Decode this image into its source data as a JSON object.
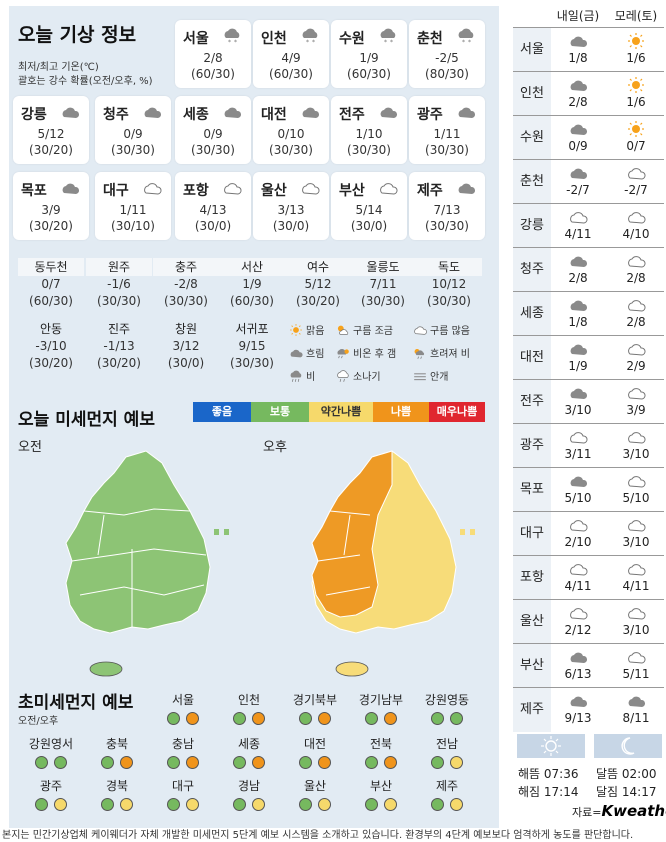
{
  "title": "오늘 기상 정보",
  "subtitle1": "최저/최고 기온(℃)",
  "subtitle2": "괄호는 강수 확률(오전/오후, %)",
  "cities": [
    {
      "name": "서울",
      "temp": "2/8",
      "prob": "(60/30)",
      "icon": "cloud-snow-icon"
    },
    {
      "name": "인천",
      "temp": "4/9",
      "prob": "(60/30)",
      "icon": "cloud-snow-icon"
    },
    {
      "name": "수원",
      "temp": "1/9",
      "prob": "(60/30)",
      "icon": "cloud-snow-icon"
    },
    {
      "name": "춘천",
      "temp": "-2/5",
      "prob": "(80/30)",
      "icon": "cloud-snow-icon"
    },
    {
      "name": "강릉",
      "temp": "5/12",
      "prob": "(30/20)",
      "icon": "cloudy-icon"
    },
    {
      "name": "청주",
      "temp": "0/9",
      "prob": "(30/30)",
      "icon": "cloudy-icon"
    },
    {
      "name": "세종",
      "temp": "0/9",
      "prob": "(30/30)",
      "icon": "cloudy-icon"
    },
    {
      "name": "대전",
      "temp": "0/10",
      "prob": "(30/30)",
      "icon": "cloudy-icon"
    },
    {
      "name": "전주",
      "temp": "1/10",
      "prob": "(30/30)",
      "icon": "cloudy-icon"
    },
    {
      "name": "광주",
      "temp": "1/11",
      "prob": "(30/30)",
      "icon": "cloudy-icon"
    },
    {
      "name": "목포",
      "temp": "3/9",
      "prob": "(30/20)",
      "icon": "cloudy-icon"
    },
    {
      "name": "대구",
      "temp": "1/11",
      "prob": "(30/10)",
      "icon": "mostly-cloudy-icon"
    },
    {
      "name": "포항",
      "temp": "4/13",
      "prob": "(30/0)",
      "icon": "mostly-cloudy-icon"
    },
    {
      "name": "울산",
      "temp": "3/13",
      "prob": "(30/0)",
      "icon": "mostly-cloudy-icon"
    },
    {
      "name": "부산",
      "temp": "5/14",
      "prob": "(30/0)",
      "icon": "mostly-cloudy-icon"
    },
    {
      "name": "제주",
      "temp": "7/13",
      "prob": "(30/30)",
      "icon": "cloudy-icon"
    }
  ],
  "small_cities": [
    {
      "name": "동두천",
      "temp": "0/7",
      "prob": "(60/30)"
    },
    {
      "name": "원주",
      "temp": "-1/6",
      "prob": "(30/30)"
    },
    {
      "name": "충주",
      "temp": "-2/8",
      "prob": "(30/30)"
    },
    {
      "name": "서산",
      "temp": "1/9",
      "prob": "(60/30)"
    },
    {
      "name": "여수",
      "temp": "5/12",
      "prob": "(30/20)"
    },
    {
      "name": "울릉도",
      "temp": "7/11",
      "prob": "(30/30)"
    },
    {
      "name": "독도",
      "temp": "10/12",
      "prob": "(30/30)"
    },
    {
      "name": "안동",
      "temp": "-3/10",
      "prob": "(30/20)"
    },
    {
      "name": "진주",
      "temp": "-1/13",
      "prob": "(30/20)"
    },
    {
      "name": "창원",
      "temp": "3/12",
      "prob": "(30/0)"
    },
    {
      "name": "서귀포",
      "temp": "9/15",
      "prob": "(30/30)"
    }
  ],
  "legend": [
    {
      "label": "맑음",
      "icon": "sun-icon"
    },
    {
      "label": "구름 조금",
      "icon": "partly-cloudy-icon"
    },
    {
      "label": "구름 많음",
      "icon": "mostly-cloudy-icon"
    },
    {
      "label": "흐림",
      "icon": "cloudy-icon"
    },
    {
      "label": "비온 후 갬",
      "icon": "rain-then-clear-icon"
    },
    {
      "label": "흐려져 비",
      "icon": "cloudy-then-rain-icon"
    },
    {
      "label": "비",
      "icon": "rain-icon"
    },
    {
      "label": "소나기",
      "icon": "shower-icon"
    },
    {
      "label": "안개",
      "icon": "fog-icon"
    }
  ],
  "dust_title": "오늘 미세먼지 예보",
  "dust_levels": [
    {
      "label": "좋음",
      "color": "#1a66c9"
    },
    {
      "label": "보통",
      "color": "#76b95f"
    },
    {
      "label": "약간나쁨",
      "color": "#f6d96b"
    },
    {
      "label": "나쁨",
      "color": "#f0941b"
    },
    {
      "label": "매우나쁨",
      "color": "#e0262f"
    }
  ],
  "am_label": "오전",
  "pm_label": "오후",
  "ufine_title": "초미세먼지 예보",
  "ufine_sub": "오전/오후",
  "ufine": [
    {
      "name": "서울",
      "am": "보통",
      "pm": "나쁨"
    },
    {
      "name": "인천",
      "am": "보통",
      "pm": "나쁨"
    },
    {
      "name": "경기북부",
      "am": "보통",
      "pm": "나쁨"
    },
    {
      "name": "경기남부",
      "am": "보통",
      "pm": "나쁨"
    },
    {
      "name": "강원영동",
      "am": "보통",
      "pm": "보통"
    },
    {
      "name": "강원영서",
      "am": "보통",
      "pm": "보통"
    },
    {
      "name": "충북",
      "am": "보통",
      "pm": "나쁨"
    },
    {
      "name": "충남",
      "am": "보통",
      "pm": "나쁨"
    },
    {
      "name": "세종",
      "am": "보통",
      "pm": "나쁨"
    },
    {
      "name": "대전",
      "am": "보통",
      "pm": "나쁨"
    },
    {
      "name": "전북",
      "am": "보통",
      "pm": "나쁨"
    },
    {
      "name": "전남",
      "am": "보통",
      "pm": "약간나쁨"
    },
    {
      "name": "광주",
      "am": "보통",
      "pm": "약간나쁨"
    },
    {
      "name": "경북",
      "am": "보통",
      "pm": "약간나쁨"
    },
    {
      "name": "대구",
      "am": "보통",
      "pm": "약간나쁨"
    },
    {
      "name": "경남",
      "am": "보통",
      "pm": "약간나쁨"
    },
    {
      "name": "울산",
      "am": "보통",
      "pm": "약간나쁨"
    },
    {
      "name": "부산",
      "am": "보통",
      "pm": "약간나쁨"
    },
    {
      "name": "제주",
      "am": "보통",
      "pm": "약간나쁨"
    }
  ],
  "forecast_headers": {
    "tomorrow": "내일(금)",
    "dayafter": "모레(토)"
  },
  "forecast": [
    {
      "city": "서울",
      "d1_icon": "cloudy-icon",
      "d1": "1/8",
      "d2_icon": "sun-icon",
      "d2": "1/6"
    },
    {
      "city": "인천",
      "d1_icon": "cloudy-icon",
      "d1": "2/8",
      "d2_icon": "sun-icon",
      "d2": "1/6"
    },
    {
      "city": "수원",
      "d1_icon": "cloudy-icon",
      "d1": "0/9",
      "d2_icon": "sun-icon",
      "d2": "0/7"
    },
    {
      "city": "춘천",
      "d1_icon": "cloudy-icon",
      "d1": "-2/7",
      "d2_icon": "mostly-cloudy-icon",
      "d2": "-2/7"
    },
    {
      "city": "강릉",
      "d1_icon": "mostly-cloudy-icon",
      "d1": "4/11",
      "d2_icon": "mostly-cloudy-icon",
      "d2": "4/10"
    },
    {
      "city": "청주",
      "d1_icon": "cloudy-icon",
      "d1": "2/8",
      "d2_icon": "mostly-cloudy-icon",
      "d2": "2/8"
    },
    {
      "city": "세종",
      "d1_icon": "cloudy-icon",
      "d1": "1/8",
      "d2_icon": "mostly-cloudy-icon",
      "d2": "2/8"
    },
    {
      "city": "대전",
      "d1_icon": "cloudy-icon",
      "d1": "1/9",
      "d2_icon": "mostly-cloudy-icon",
      "d2": "2/9"
    },
    {
      "city": "전주",
      "d1_icon": "cloudy-icon",
      "d1": "3/10",
      "d2_icon": "mostly-cloudy-icon",
      "d2": "3/9"
    },
    {
      "city": "광주",
      "d1_icon": "mostly-cloudy-icon",
      "d1": "3/11",
      "d2_icon": "mostly-cloudy-icon",
      "d2": "3/10"
    },
    {
      "city": "목포",
      "d1_icon": "cloudy-icon",
      "d1": "5/10",
      "d2_icon": "mostly-cloudy-icon",
      "d2": "5/10"
    },
    {
      "city": "대구",
      "d1_icon": "mostly-cloudy-icon",
      "d1": "2/10",
      "d2_icon": "mostly-cloudy-icon",
      "d2": "3/10"
    },
    {
      "city": "포항",
      "d1_icon": "mostly-cloudy-icon",
      "d1": "4/11",
      "d2_icon": "mostly-cloudy-icon",
      "d2": "4/11"
    },
    {
      "city": "울산",
      "d1_icon": "mostly-cloudy-icon",
      "d1": "2/12",
      "d2_icon": "mostly-cloudy-icon",
      "d2": "3/10"
    },
    {
      "city": "부산",
      "d1_icon": "cloudy-icon",
      "d1": "6/13",
      "d2_icon": "mostly-cloudy-icon",
      "d2": "5/11"
    },
    {
      "city": "제주",
      "d1_icon": "cloudy-icon",
      "d1": "9/13",
      "d2_icon": "cloudy-icon",
      "d2": "8/11"
    }
  ],
  "sun": {
    "sunrise": "해뜸 07:36",
    "sunset": "해짐 17:14",
    "moonrise": "달뜸 02:00",
    "moonset": "달짐 14:17"
  },
  "source_prefix": "자료=",
  "source_brand": "Kweather",
  "footer": "본지는 민간기상업체 케이웨더가 자체 개발한 미세먼지 5단계 예보 시스템을 소개하고 있습니다. 환경부의 4단계 예보보다 엄격하게 농도를 판단합니다."
}
